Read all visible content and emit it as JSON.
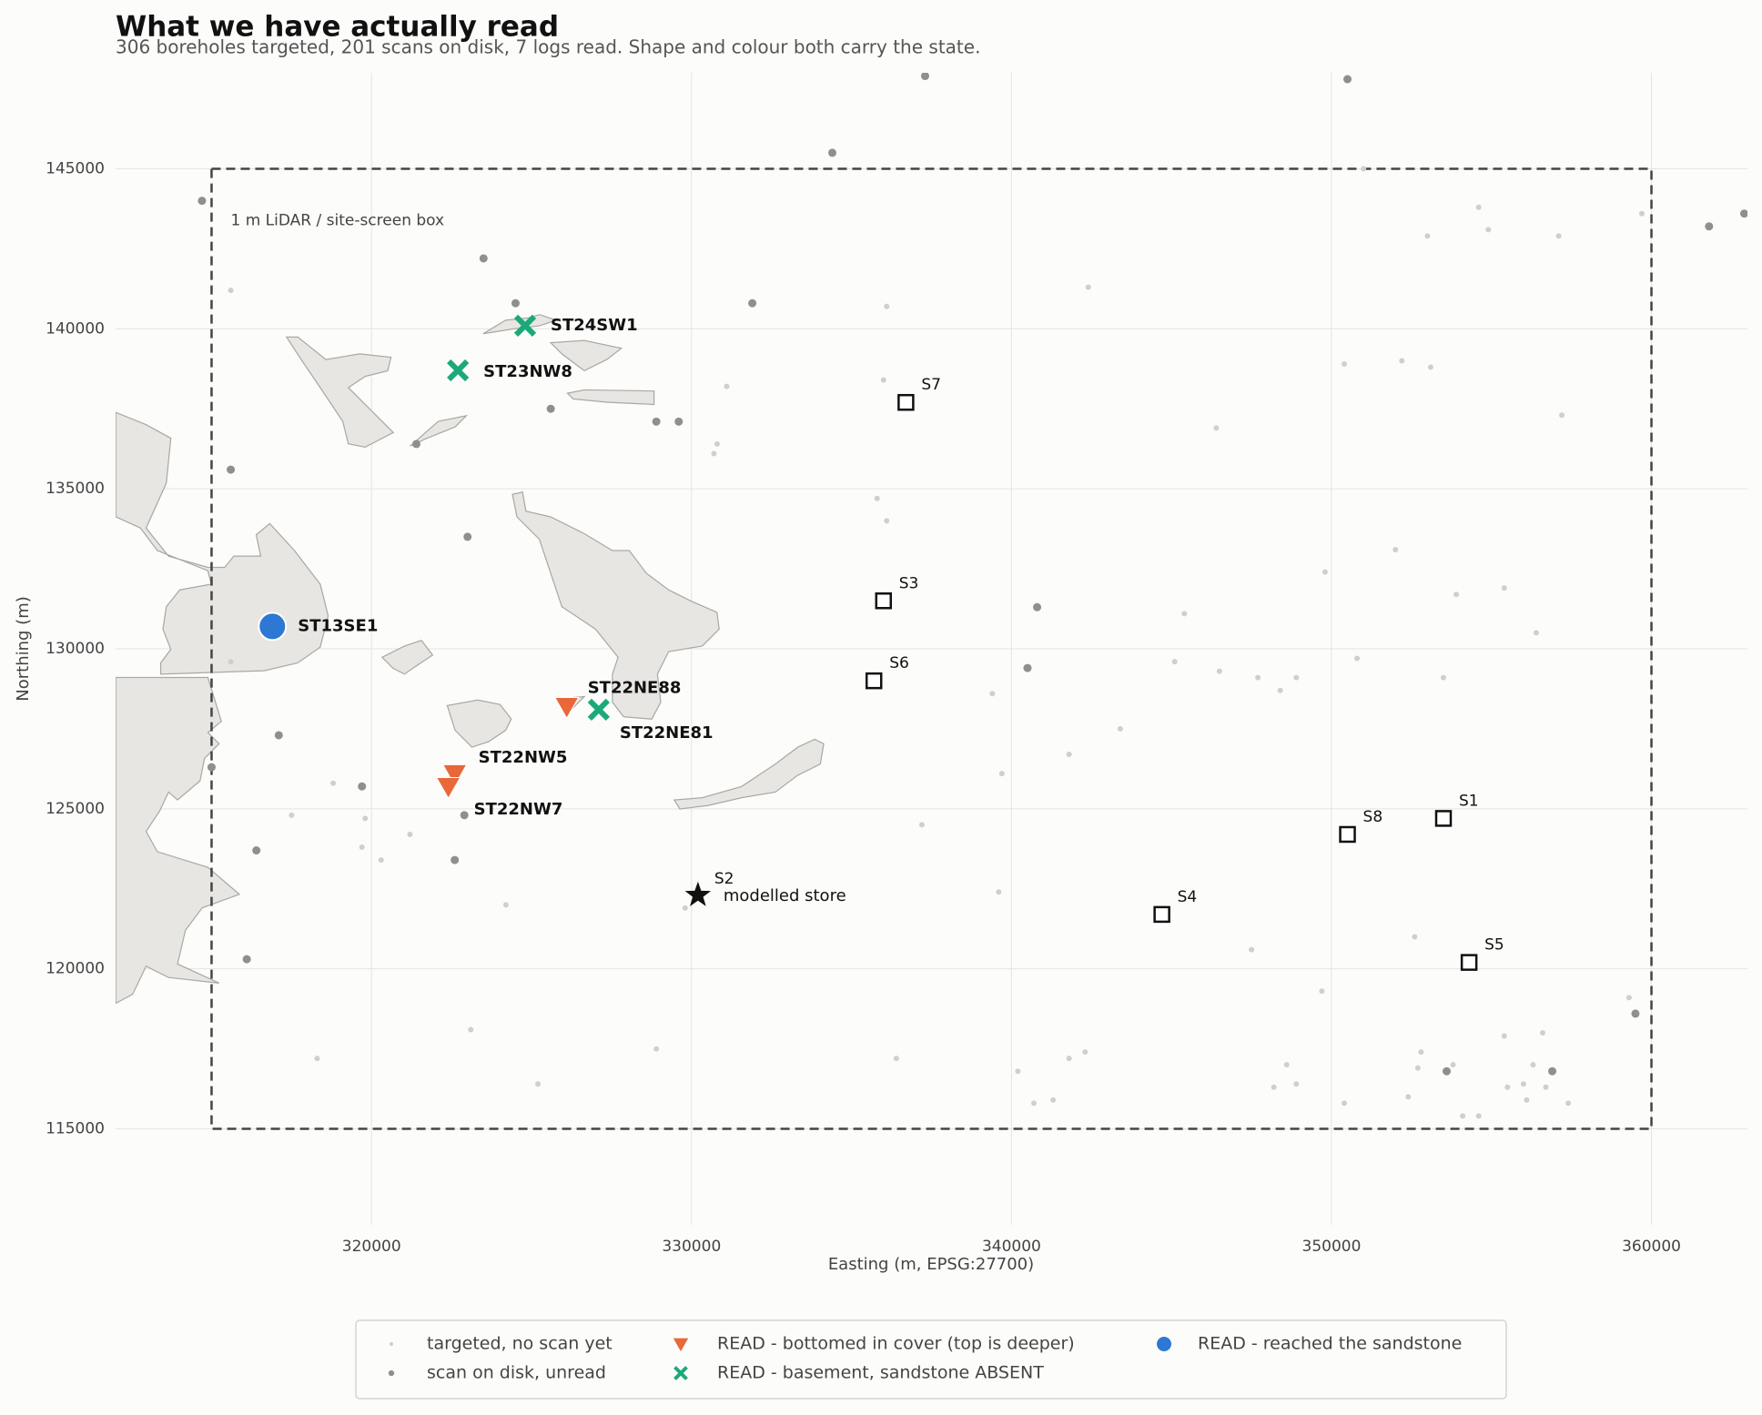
{
  "chart_data": {
    "type": "scatter",
    "title": "What we have actually read",
    "subtitle": "306 boreholes targeted, 201 scans on disk, 7 logs read. Shape and colour both carry the state.",
    "x_label": "Easting (m, EPSG:27700)",
    "y_label": "Northing (m)",
    "xlim": [
      312000,
      363000
    ],
    "ylim": [
      112000,
      148000
    ],
    "xticks": [
      320000,
      330000,
      340000,
      350000,
      360000
    ],
    "yticks": [
      115000,
      120000,
      125000,
      130000,
      135000,
      140000,
      145000
    ],
    "grid": true,
    "legend": "bottom",
    "box": {
      "label": "1 m LiDAR / site-screen box",
      "xlim": [
        315000,
        360000
      ],
      "ylim": [
        115000,
        145000
      ]
    },
    "series": [
      {
        "name": "targeted, no scan yet",
        "color": "#cfcfcf",
        "marker": "small-dot",
        "x": [
          315600,
          336000,
          336100,
          331100,
          330800,
          330700,
          335800,
          336100,
          346400,
          342400,
          351000,
          353000,
          354600,
          354900,
          357100,
          359700,
          350400,
          352200,
          353100,
          357200,
          352000,
          349800,
          353900,
          355400,
          356400,
          345400,
          345100,
          346500,
          347700,
          348400,
          348900,
          350800,
          353500,
          339400,
          341800,
          343400,
          339700,
          337200,
          339600,
          347500,
          349700,
          352600,
          359300,
          355400,
          356600,
          348600,
          348900,
          348200,
          352700,
          352800,
          353800,
          355500,
          356000,
          356300,
          356700,
          357400,
          356100,
          352400,
          350400,
          341300,
          340700,
          340200,
          341800,
          342300,
          336400,
          328900,
          325200,
          323100,
          318300,
          324200,
          329800,
          321200,
          320300,
          319700,
          319800,
          317500,
          318800,
          315600,
          354100,
          354600
        ],
        "values": [
          141200,
          138400,
          140700,
          138200,
          136400,
          136100,
          134700,
          134000,
          136900,
          141300,
          145000,
          142900,
          143800,
          143100,
          142900,
          143600,
          138900,
          139000,
          138800,
          137300,
          133100,
          132400,
          131700,
          131900,
          130500,
          131100,
          129600,
          129300,
          129100,
          128700,
          129100,
          129700,
          129100,
          128600,
          126700,
          127500,
          126100,
          124500,
          122400,
          120600,
          119300,
          121000,
          119100,
          117900,
          118000,
          117000,
          116400,
          116300,
          116900,
          117400,
          117000,
          116300,
          116400,
          117000,
          116300,
          115800,
          115900,
          116000,
          115800,
          115900,
          115800,
          116800,
          117200,
          117400,
          117200,
          117500,
          116400,
          118100,
          117200,
          122000,
          121900,
          124200,
          123400,
          123800,
          124700,
          124800,
          125800,
          129600,
          115400,
          115400
        ]
      },
      {
        "name": "scan on disk, unread",
        "color": "#8f8f8f",
        "marker": "dot",
        "x": [
          314700,
          323500,
          324500,
          331900,
          334400,
          337300,
          350500,
          361800,
          362900,
          325600,
          328900,
          329600,
          321400,
          315600,
          323000,
          340800,
          340500,
          317100,
          315000,
          319700,
          322900,
          316400,
          322600,
          316100,
          359500,
          356900,
          353600
        ],
        "values": [
          144000,
          142200,
          140800,
          140800,
          145500,
          147900,
          147800,
          143200,
          143600,
          137500,
          137100,
          137100,
          136400,
          135600,
          133500,
          131300,
          129400,
          127300,
          126300,
          125700,
          124800,
          123700,
          123400,
          120300,
          118600,
          116800,
          116800
        ]
      },
      {
        "name": "READ - bottomed in cover (top is deeper)",
        "color": "#e8683a",
        "marker": "triangle-down",
        "labels": [
          "ST22NE88",
          "ST22NW5",
          "ST22NW7"
        ],
        "x": [
          326100,
          322600,
          322400
        ],
        "values": [
          128200,
          126100,
          125700
        ]
      },
      {
        "name": "READ - basement, sandstone ABSENT",
        "color": "#1ba97a",
        "marker": "x",
        "labels": [
          "ST24SW1",
          "ST23NW8",
          "ST22NE81"
        ],
        "x": [
          324800,
          322700,
          327100
        ],
        "values": [
          140100,
          138700,
          128100
        ]
      },
      {
        "name": "READ - reached the sandstone",
        "color": "#2c78d4",
        "marker": "circle",
        "labels": [
          "ST13SE1"
        ],
        "x": [
          316900
        ],
        "values": [
          130700
        ]
      }
    ],
    "sites": {
      "labels": [
        "S1",
        "S3",
        "S4",
        "S5",
        "S6",
        "S7",
        "S8"
      ],
      "x": [
        353500,
        336000,
        344700,
        354300,
        335700,
        336700,
        350500
      ],
      "values": [
        124700,
        131500,
        121700,
        120200,
        129000,
        137700,
        124200
      ]
    },
    "store": {
      "label": "S2",
      "annotation": "modelled store",
      "x": 330200,
      "y": 122300
    }
  }
}
